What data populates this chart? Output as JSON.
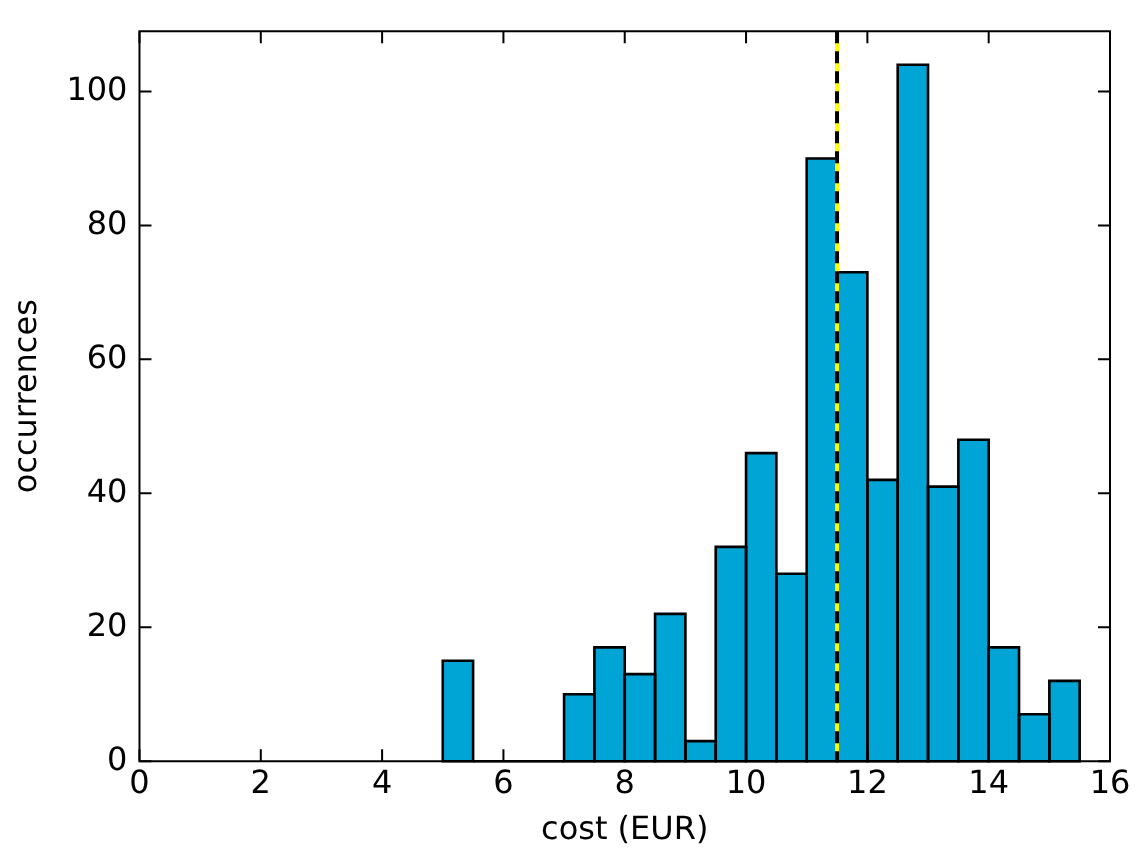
{
  "chart_data": {
    "type": "histogram",
    "xlabel": "cost (EUR)",
    "ylabel": "occurrences",
    "bins": [
      5,
      5.5,
      6,
      6.5,
      7,
      7.5,
      8,
      8.5,
      9,
      9.5,
      10,
      10.5,
      11,
      11.5,
      12,
      12.5,
      13,
      13.5,
      14,
      14.5,
      15,
      15.5
    ],
    "values": [
      15,
      0,
      0,
      0,
      10,
      17,
      13,
      22,
      3,
      32,
      46,
      28,
      90,
      73,
      42,
      104,
      41,
      48,
      17,
      7,
      12
    ],
    "color": "#00a5d6",
    "xlim": [
      0,
      16
    ],
    "xticks": [
      0,
      2,
      4,
      6,
      8,
      10,
      12,
      14,
      16
    ],
    "ylim": [
      0,
      109
    ],
    "yticks": [
      0,
      20,
      40,
      60,
      80,
      100
    ],
    "ref_lines": [
      {
        "axis": "x",
        "value": 11.5,
        "color": "#ffff00",
        "line_style": "solid"
      },
      {
        "axis": "x",
        "value": 11.5,
        "color": "#000000",
        "line_style": "dashed"
      }
    ],
    "grid": false
  }
}
